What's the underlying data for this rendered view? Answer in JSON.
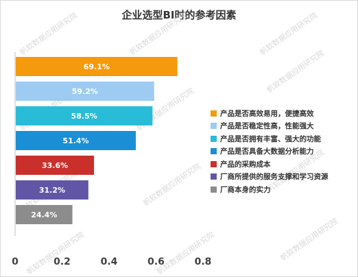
{
  "chart_data": {
    "type": "bar",
    "orientation": "horizontal",
    "title": "企业选型BI时的参考因素",
    "watermark": "帆软数据应用研究院",
    "categories": [
      "产品是否高效易用，便捷高效",
      "产品是否稳定性高，性能强大",
      "产品是否拥有丰富、强大的功能",
      "产品是否具备大数据分析能力",
      "产品的采购成本",
      "厂商所提供的服务支撑和学习资源",
      "厂商本身的实力"
    ],
    "values": [
      0.691,
      0.592,
      0.585,
      0.514,
      0.336,
      0.312,
      0.244
    ],
    "data_labels": [
      "69.1%",
      "59.2%",
      "58.5%",
      "51.4%",
      "33.6%",
      "31.2%",
      "24.4%"
    ],
    "colors": [
      "#f59a0c",
      "#9ecbf2",
      "#29bcd9",
      "#1a8fd6",
      "#c9302c",
      "#6156a5",
      "#8c8c8c"
    ],
    "xlim": [
      0,
      0.8
    ],
    "x_ticks": [
      0,
      0.2,
      0.4,
      0.6,
      0.8
    ],
    "x_tick_labels": [
      "0",
      "0.2",
      "0.4",
      "0.6",
      "0.8"
    ],
    "grid": false,
    "legend_position": "right"
  }
}
